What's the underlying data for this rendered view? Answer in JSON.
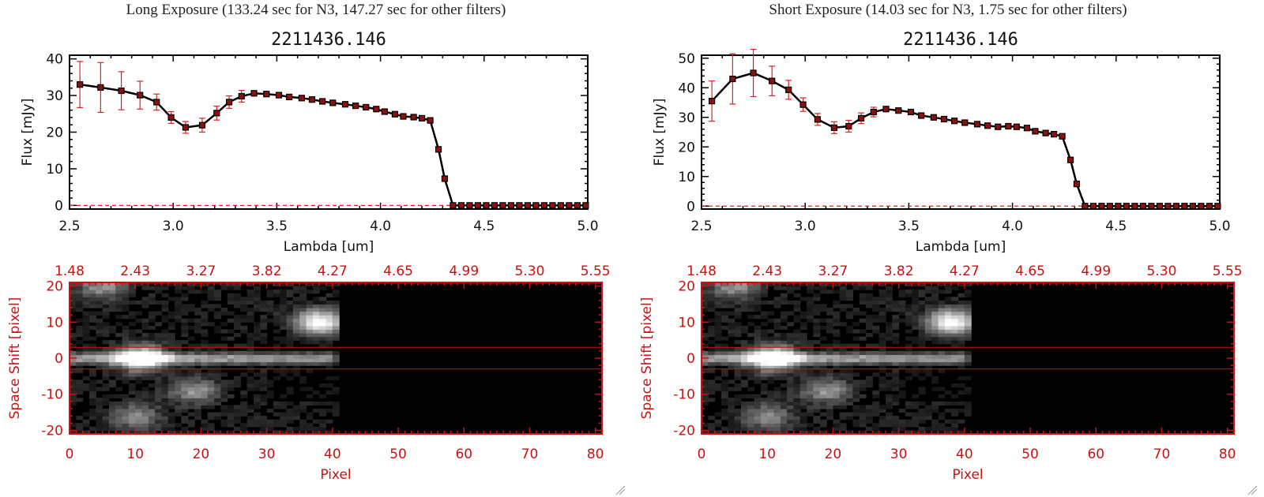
{
  "chart_data": [
    {
      "type": "line",
      "panel_title": "Long Exposure (133.24 sec for N3, 147.27 sec for other filters)",
      "title": "2211436.146",
      "xlabel": "Lambda [um]",
      "ylabel": "Flux [mJy]",
      "xlim": [
        2.5,
        5.0
      ],
      "ylim": [
        -1,
        41
      ],
      "x_ticks": [
        "2.5",
        "3.0",
        "3.5",
        "4.0",
        "4.5",
        "5.0"
      ],
      "y_ticks": [
        "0",
        "10",
        "20",
        "30",
        "40"
      ],
      "series": [
        {
          "name": "flux",
          "x": [
            2.55,
            2.65,
            2.75,
            2.84,
            2.92,
            2.99,
            3.06,
            3.14,
            3.21,
            3.27,
            3.33,
            3.39,
            3.45,
            3.51,
            3.56,
            3.62,
            3.67,
            3.72,
            3.77,
            3.83,
            3.88,
            3.93,
            3.98,
            4.02,
            4.07,
            4.11,
            4.16,
            4.2,
            4.24,
            4.28,
            4.31,
            4.35,
            4.39,
            4.43,
            4.47,
            4.51,
            4.55,
            4.59,
            4.63,
            4.67,
            4.71,
            4.75,
            4.79,
            4.83,
            4.87,
            4.91,
            4.95,
            4.99
          ],
          "y": [
            33,
            32.2,
            31.3,
            30.1,
            28.2,
            24,
            21.3,
            21.9,
            25.2,
            28.2,
            29.8,
            30.6,
            30.4,
            30.1,
            29.6,
            29.3,
            28.9,
            28.4,
            28,
            27.6,
            27.2,
            26.8,
            26.3,
            25.6,
            24.9,
            24.3,
            24.1,
            23.8,
            23.2,
            15.3,
            7.3,
            0,
            0,
            0,
            0,
            0,
            0,
            0,
            0,
            0,
            0,
            0,
            0,
            0,
            0,
            0,
            0,
            0
          ],
          "yerr": [
            6.3,
            6.8,
            5.2,
            3.8,
            2.2,
            1.6,
            1.6,
            1.9,
            1.9,
            1.7,
            1.6,
            0.5,
            0.4,
            0.4,
            0.4,
            0.4,
            0.4,
            0.4,
            0.4,
            0.4,
            0.4,
            0.4,
            0.4,
            0.4,
            0.4,
            0.4,
            0.4,
            0.4,
            0.4,
            0.4,
            0.4,
            0,
            0,
            0,
            0,
            0,
            0,
            0,
            0,
            0,
            0,
            0,
            0,
            0,
            0,
            0,
            0,
            0
          ]
        }
      ],
      "image": {
        "type": "heatmap",
        "xlabel": "Pixel",
        "ylabel": "Space Shift [pixel]",
        "xlim": [
          0,
          81
        ],
        "ylim": [
          -21,
          21
        ],
        "x_ticks": [
          "0",
          "10",
          "20",
          "30",
          "40",
          "50",
          "60",
          "70",
          "80"
        ],
        "y_ticks": [
          "-20",
          "-10",
          "0",
          "10",
          "20"
        ],
        "top_ticks": [
          "1.48",
          "2.43",
          "3.27",
          "3.82",
          "4.27",
          "4.65",
          "4.99",
          "5.30",
          "5.55"
        ],
        "data_cutoff_pixel": 41,
        "aperture_lines": [
          -3,
          3
        ],
        "sources": [
          {
            "x": 11,
            "y": 0,
            "peak": 1.0
          },
          {
            "x": 38,
            "y": 10,
            "peak": 1.0
          },
          {
            "x": 19,
            "y": -9,
            "peak": 0.5
          },
          {
            "x": 10,
            "y": -16,
            "peak": 0.45
          },
          {
            "x": 5,
            "y": 20,
            "peak": 0.5
          }
        ]
      }
    },
    {
      "type": "line",
      "panel_title": "Short Exposure (14.03 sec for N3, 1.75 sec for other filters)",
      "title": "2211436.146",
      "xlabel": "Lambda [um]",
      "ylabel": "Flux [mJy]",
      "xlim": [
        2.5,
        5.0
      ],
      "ylim": [
        -1,
        51
      ],
      "x_ticks": [
        "2.5",
        "3.0",
        "3.5",
        "4.0",
        "4.5",
        "5.0"
      ],
      "y_ticks": [
        "0",
        "10",
        "20",
        "30",
        "40",
        "50"
      ],
      "series": [
        {
          "name": "flux",
          "x": [
            2.55,
            2.65,
            2.75,
            2.84,
            2.92,
            2.99,
            3.06,
            3.14,
            3.21,
            3.27,
            3.33,
            3.39,
            3.45,
            3.51,
            3.56,
            3.62,
            3.67,
            3.72,
            3.77,
            3.83,
            3.88,
            3.93,
            3.98,
            4.02,
            4.07,
            4.11,
            4.16,
            4.2,
            4.24,
            4.28,
            4.31,
            4.35,
            4.39,
            4.43,
            4.47,
            4.51,
            4.55,
            4.59,
            4.63,
            4.67,
            4.71,
            4.75,
            4.79,
            4.83,
            4.87,
            4.91,
            4.95,
            4.99
          ],
          "y": [
            35.5,
            43,
            45,
            42.3,
            39.3,
            34.3,
            29.3,
            26.5,
            27,
            29.7,
            31.8,
            32.8,
            32.3,
            31.8,
            30.6,
            30,
            29.4,
            28.8,
            28.2,
            27.7,
            27.2,
            26.8,
            27,
            26.8,
            26.4,
            25.3,
            24.7,
            24.3,
            23.6,
            15.6,
            7.5,
            0,
            0,
            0,
            0,
            0,
            0,
            0,
            0,
            0,
            0,
            0,
            0,
            0,
            0,
            0,
            0,
            0
          ],
          "yerr": [
            6.8,
            8.5,
            8,
            5,
            3.2,
            2.3,
            2,
            2,
            2,
            1.8,
            1.6,
            0.6,
            0.5,
            0.5,
            0.5,
            0.5,
            0.5,
            0.5,
            0.5,
            0.5,
            0.5,
            0.5,
            0.5,
            0.5,
            0.5,
            0.5,
            0.5,
            0.5,
            0.5,
            0.5,
            0.5,
            0,
            0,
            0,
            0,
            0,
            0,
            0,
            0,
            0,
            0,
            0,
            0,
            0,
            0,
            0,
            0,
            0
          ]
        }
      ],
      "image": {
        "type": "heatmap",
        "xlabel": "Pixel",
        "ylabel": "Space Shift [pixel]",
        "xlim": [
          0,
          81
        ],
        "ylim": [
          -21,
          21
        ],
        "x_ticks": [
          "0",
          "10",
          "20",
          "30",
          "40",
          "50",
          "60",
          "70",
          "80"
        ],
        "y_ticks": [
          "-20",
          "-10",
          "0",
          "10",
          "20"
        ],
        "top_ticks": [
          "1.48",
          "2.43",
          "3.27",
          "3.82",
          "4.27",
          "4.65",
          "4.99",
          "5.30",
          "5.55"
        ],
        "data_cutoff_pixel": 41,
        "aperture_lines": [
          -3,
          3
        ],
        "sources": [
          {
            "x": 11,
            "y": 0,
            "peak": 1.0
          },
          {
            "x": 38,
            "y": 10,
            "peak": 1.0
          },
          {
            "x": 19,
            "y": -9,
            "peak": 0.5
          },
          {
            "x": 10,
            "y": -16,
            "peak": 0.45
          },
          {
            "x": 5,
            "y": 20,
            "peak": 0.5
          }
        ]
      }
    }
  ],
  "colors": {
    "line": "#000000",
    "marker_fill": "#8b1010",
    "error_bar": "#dd2222",
    "zero_line": "#dd2222",
    "image_axes": "#cc1111",
    "aperture": "#cc1111"
  }
}
